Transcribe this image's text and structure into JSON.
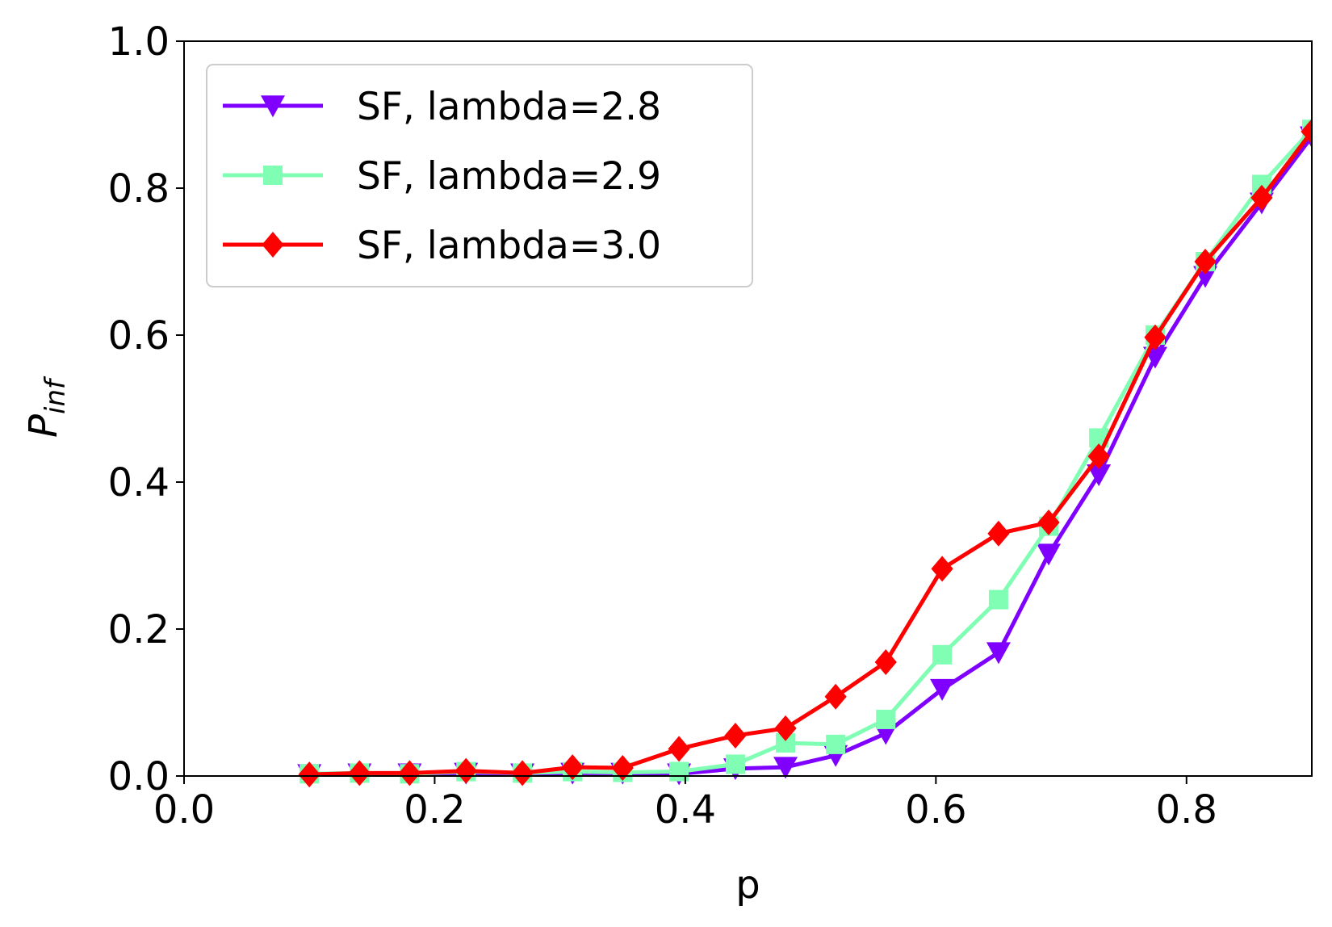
{
  "chart_data": {
    "type": "line",
    "title": "",
    "xlabel": "p",
    "ylabel": "P",
    "ylabel_subscript": "inf",
    "xlim": [
      0.0,
      0.9
    ],
    "ylim": [
      0.0,
      1.0
    ],
    "x_ticks": [
      "0.0",
      "0.2",
      "0.4",
      "0.6",
      "0.8"
    ],
    "y_ticks": [
      "0.0",
      "0.2",
      "0.4",
      "0.6",
      "0.8",
      "1.0"
    ],
    "grid": false,
    "legend_position": "top-left",
    "x": [
      0.1,
      0.14,
      0.18,
      0.225,
      0.27,
      0.31,
      0.35,
      0.395,
      0.44,
      0.48,
      0.52,
      0.56,
      0.605,
      0.65,
      0.69,
      0.73,
      0.775,
      0.815,
      0.86,
      0.9
    ],
    "series": [
      {
        "name": "SF, lambda=2.8",
        "color": "#7f00ff",
        "marker": "triangle-down",
        "values": [
          0.002,
          0.003,
          0.003,
          0.004,
          0.003,
          0.004,
          0.004,
          0.003,
          0.01,
          0.012,
          0.028,
          0.058,
          0.118,
          0.168,
          0.302,
          0.41,
          0.57,
          0.68,
          0.78,
          0.87
        ]
      },
      {
        "name": "SF, lambda=2.9",
        "color": "#80ffb4",
        "marker": "square",
        "values": [
          0.003,
          0.004,
          0.003,
          0.006,
          0.004,
          0.006,
          0.005,
          0.006,
          0.016,
          0.045,
          0.043,
          0.077,
          0.165,
          0.24,
          0.34,
          0.46,
          0.6,
          0.7,
          0.805,
          0.88
        ]
      },
      {
        "name": "SF, lambda=3.0",
        "color": "#ff0000",
        "marker": "diamond",
        "values": [
          0.002,
          0.004,
          0.004,
          0.007,
          0.004,
          0.012,
          0.011,
          0.037,
          0.055,
          0.065,
          0.108,
          0.155,
          0.282,
          0.33,
          0.345,
          0.435,
          0.597,
          0.7,
          0.787,
          0.877
        ]
      }
    ]
  }
}
